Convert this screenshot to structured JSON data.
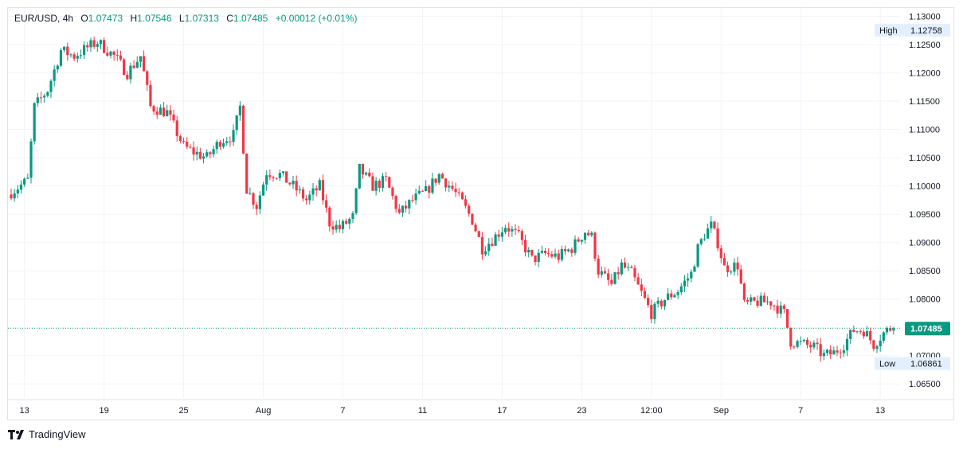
{
  "header": {
    "symbol": "EUR/USD",
    "interval": "4h",
    "open_label": "O",
    "open": "1.07473",
    "high_label": "H",
    "high": "1.07546",
    "low_label": "L",
    "low": "1.07313",
    "close_label": "C",
    "close": "1.07485",
    "change": "+0.00012 (+0.01%)"
  },
  "brand": {
    "name": "TradingView",
    "logo": "tradingview-logo-icon"
  },
  "colors": {
    "up": "#089981",
    "down": "#f23645",
    "grid": "#f0f3fa",
    "axis_text": "#131722",
    "price_tag": "#089981"
  },
  "chart_data": {
    "type": "candlestick",
    "title": "",
    "yaxis": {
      "range": [
        1.0625,
        1.1315
      ],
      "ticks": [
        "1.13000",
        "1.12500",
        "1.12000",
        "1.11500",
        "1.11000",
        "1.10500",
        "1.10000",
        "1.09500",
        "1.09000",
        "1.08500",
        "1.08000",
        "1.07000",
        "1.06500"
      ]
    },
    "xaxis": {
      "ticks": [
        {
          "label": "13",
          "index": 4
        },
        {
          "label": "19",
          "index": 28
        },
        {
          "label": "25",
          "index": 52
        },
        {
          "label": "Aug",
          "index": 76
        },
        {
          "label": "7",
          "index": 100
        },
        {
          "label": "11",
          "index": 124
        },
        {
          "label": "17",
          "index": 148
        },
        {
          "label": "23",
          "index": 172
        },
        {
          "label": "12:00",
          "index": 193
        },
        {
          "label": "Sep",
          "index": 214
        },
        {
          "label": "7",
          "index": 238
        },
        {
          "label": "13",
          "index": 262
        }
      ]
    },
    "markers": {
      "high": {
        "label": "High",
        "value": "1.12758"
      },
      "low": {
        "label": "Low",
        "value": "1.06861"
      },
      "last": {
        "value": "1.07485"
      }
    },
    "waypoints": [
      [
        0,
        1.0985
      ],
      [
        6,
        1.101
      ],
      [
        8,
        1.114
      ],
      [
        12,
        1.117
      ],
      [
        16,
        1.124
      ],
      [
        20,
        1.123
      ],
      [
        24,
        1.1245
      ],
      [
        27,
        1.1255
      ],
      [
        32,
        1.123
      ],
      [
        36,
        1.12
      ],
      [
        40,
        1.123
      ],
      [
        43,
        1.114
      ],
      [
        48,
        1.113
      ],
      [
        53,
        1.107
      ],
      [
        56,
        1.106
      ],
      [
        60,
        1.105
      ],
      [
        64,
        1.108
      ],
      [
        68,
        1.109
      ],
      [
        70,
        1.114
      ],
      [
        72,
        1.0995
      ],
      [
        75,
        1.0965
      ],
      [
        78,
        1.1025
      ],
      [
        82,
        1.102
      ],
      [
        86,
        1.1
      ],
      [
        90,
        1.0975
      ],
      [
        94,
        1.1
      ],
      [
        97,
        1.0935
      ],
      [
        100,
        1.0925
      ],
      [
        104,
        1.0945
      ],
      [
        106,
        1.103
      ],
      [
        110,
        1.1
      ],
      [
        114,
        1.101
      ],
      [
        118,
        1.095
      ],
      [
        122,
        1.0975
      ],
      [
        126,
        1.099
      ],
      [
        130,
        1.102
      ],
      [
        134,
        1.0995
      ],
      [
        137,
        1.097
      ],
      [
        140,
        1.094
      ],
      [
        143,
        1.089
      ],
      [
        146,
        1.0905
      ],
      [
        150,
        1.093
      ],
      [
        154,
        1.091
      ],
      [
        158,
        1.087
      ],
      [
        162,
        1.088
      ],
      [
        166,
        1.0875
      ],
      [
        170,
        1.089
      ],
      [
        174,
        1.092
      ],
      [
        176,
        1.091
      ],
      [
        178,
        1.085
      ],
      [
        182,
        1.0825
      ],
      [
        185,
        1.086
      ],
      [
        188,
        1.0845
      ],
      [
        191,
        1.081
      ],
      [
        194,
        1.0775
      ],
      [
        198,
        1.08
      ],
      [
        202,
        1.0815
      ],
      [
        206,
        1.0845
      ],
      [
        208,
        1.089
      ],
      [
        210,
        1.0915
      ],
      [
        212,
        1.093
      ],
      [
        214,
        1.09
      ],
      [
        216,
        1.0855
      ],
      [
        220,
        1.086
      ],
      [
        222,
        1.079
      ],
      [
        226,
        1.0795
      ],
      [
        230,
        1.0795
      ],
      [
        234,
        1.0775
      ],
      [
        236,
        1.0725
      ],
      [
        240,
        1.072
      ],
      [
        243,
        1.0715
      ],
      [
        246,
        1.07
      ],
      [
        249,
        1.0705
      ],
      [
        252,
        1.072
      ],
      [
        255,
        1.0745
      ],
      [
        258,
        1.0745
      ],
      [
        261,
        1.072
      ],
      [
        264,
        1.074
      ],
      [
        266,
        1.07485
      ]
    ]
  }
}
